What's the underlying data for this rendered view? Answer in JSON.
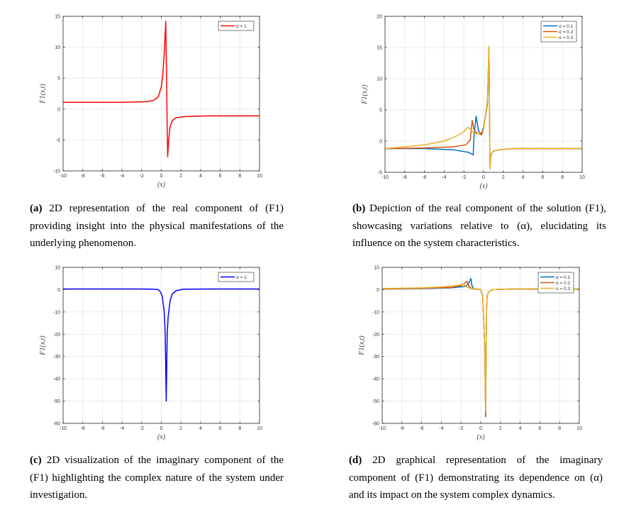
{
  "chart_data": [
    {
      "id": "a",
      "type": "line",
      "xlabel": "(x)",
      "ylabel": "F1(x,t)",
      "xlim": [
        -10,
        10
      ],
      "ylim": [
        -10,
        15
      ],
      "xticks": [
        -10,
        -8,
        -6,
        -4,
        -2,
        0,
        2,
        4,
        6,
        8,
        10
      ],
      "yticks": [
        -10,
        -5,
        0,
        5,
        10,
        15
      ],
      "grid": true,
      "legend": "top-right",
      "series": [
        {
          "name": "α = 1",
          "color": "#ff0000",
          "x": [
            -10,
            -4,
            -1.5,
            -0.8,
            -0.3,
            0.0,
            0.15,
            0.3,
            0.45,
            0.55,
            0.6,
            0.65,
            0.75,
            0.9,
            1.1,
            1.5,
            2.5,
            5,
            10
          ],
          "y": [
            1.1,
            1.1,
            1.2,
            1.4,
            2.0,
            3.6,
            5.5,
            9.0,
            14.2,
            3.0,
            -3.0,
            -7.7,
            -5.0,
            -2.8,
            -1.9,
            -1.4,
            -1.2,
            -1.1,
            -1.1
          ]
        }
      ],
      "caption_label": "(a)",
      "caption_text": "2D representation of the real component of (F1) providing insight into the physical manifestations of the underlying phenomenon."
    },
    {
      "id": "b",
      "type": "line",
      "xlabel": "(x)",
      "ylabel": "F1(x,t)",
      "xlim": [
        -10,
        10
      ],
      "ylim": [
        -5,
        20
      ],
      "xticks": [
        -10,
        -8,
        -6,
        -4,
        -2,
        0,
        2,
        4,
        6,
        8,
        10
      ],
      "yticks": [
        -5,
        0,
        5,
        10,
        15,
        20
      ],
      "grid": true,
      "legend": "top-right",
      "series": [
        {
          "name": "α = 0.1",
          "color": "#0072bd",
          "x": [
            -10,
            -6,
            -3,
            -1.5,
            -1.05,
            -0.95,
            -0.75,
            -0.6,
            -0.5,
            -0.25,
            0,
            0.4,
            0.5,
            0.55,
            0.6,
            0.65,
            0.7,
            0.8,
            1,
            1.5,
            3,
            10
          ],
          "y": [
            -1.2,
            -1.2,
            -1.4,
            -1.8,
            -2.2,
            1.2,
            4.0,
            2.5,
            1.6,
            1.2,
            2.2,
            6.0,
            12.5,
            15.0,
            5.0,
            -4.0,
            -3.0,
            -2.0,
            -1.6,
            -1.4,
            -1.2,
            -1.2
          ]
        },
        {
          "name": "α = 0.2",
          "color": "#d95319",
          "x": [
            -10,
            -6,
            -3,
            -1.8,
            -1.35,
            -1.15,
            -1.0,
            -0.8,
            -0.5,
            -0.2,
            0,
            0.4,
            0.5,
            0.55,
            0.6,
            0.65,
            0.7,
            0.8,
            1,
            1.5,
            3,
            10
          ],
          "y": [
            -1.2,
            -1.1,
            -0.9,
            -0.6,
            0.2,
            3.3,
            2.0,
            1.4,
            1.2,
            1.0,
            2.0,
            6.5,
            12.8,
            15.0,
            5.0,
            -4.0,
            -3.0,
            -2.0,
            -1.6,
            -1.4,
            -1.2,
            -1.2
          ]
        },
        {
          "name": "α = 0.3",
          "color": "#edb120",
          "x": [
            -10,
            -6,
            -4,
            -3,
            -2,
            -1.6,
            -1.4,
            -1.2,
            -0.8,
            -0.4,
            0,
            0.4,
            0.5,
            0.55,
            0.6,
            0.65,
            0.7,
            0.8,
            1,
            1.5,
            3,
            10
          ],
          "y": [
            -1.2,
            -0.6,
            0.0,
            0.6,
            1.5,
            2.2,
            2.0,
            1.6,
            1.2,
            1.2,
            1.8,
            6.5,
            12.8,
            15.2,
            5.0,
            -4.5,
            -3.0,
            -2.0,
            -1.6,
            -1.4,
            -1.2,
            -1.2
          ]
        }
      ],
      "caption_label": "(b)",
      "caption_text": "Depiction of the real component of the solution (F1), showcasing variations relative to (α), elucidating its influence on the system characteristics."
    },
    {
      "id": "c",
      "type": "line",
      "xlabel": "(x)",
      "ylabel": "F1(x,t)",
      "xlim": [
        -10,
        10
      ],
      "ylim": [
        -60,
        10
      ],
      "xticks": [
        -10,
        -8,
        -6,
        -4,
        -2,
        0,
        2,
        4,
        6,
        8,
        10
      ],
      "yticks": [
        -60,
        -50,
        -40,
        -30,
        -20,
        -10,
        0,
        10
      ],
      "grid": true,
      "legend": "top-right",
      "series": [
        {
          "name": "α = 1",
          "color": "#0000ff",
          "x": [
            -10,
            -2,
            -0.8,
            -0.3,
            -0.1,
            0.1,
            0.3,
            0.4,
            0.5,
            0.6,
            0.7,
            0.9,
            1.1,
            1.5,
            2.2,
            5,
            10
          ],
          "y": [
            0.3,
            0.3,
            0.2,
            0.0,
            -1.0,
            -3.0,
            -10.0,
            -20.0,
            -50.0,
            -20.0,
            -12.0,
            -5.0,
            -2.0,
            -0.5,
            0.2,
            0.3,
            0.3
          ]
        }
      ],
      "caption_label": "(c)",
      "caption_text": "2D visualization of the imaginary component of the (F1) highlighting the complex nature of the system under investigation."
    },
    {
      "id": "d",
      "type": "line",
      "xlabel": "(x)",
      "ylabel": "F1(x,t)",
      "xlim": [
        -10,
        10
      ],
      "ylim": [
        -60,
        10
      ],
      "xticks": [
        -10,
        -8,
        -6,
        -4,
        -2,
        0,
        2,
        4,
        6,
        8,
        10
      ],
      "yticks": [
        -60,
        -50,
        -40,
        -30,
        -20,
        -10,
        0,
        10
      ],
      "grid": true,
      "legend": "top-right",
      "series": [
        {
          "name": "α = 0.1",
          "color": "#0072bd",
          "x": [
            -10,
            -6,
            -3,
            -1.5,
            -1.2,
            -1.0,
            -0.9,
            -0.7,
            -0.4,
            0,
            0.2,
            0.4,
            0.5,
            0.55,
            0.6,
            0.65,
            0.8,
            1.2,
            3,
            10
          ],
          "y": [
            0.3,
            0.5,
            0.8,
            1.5,
            3.0,
            5.0,
            2.0,
            0.3,
            0.2,
            0.1,
            -3.0,
            -25.0,
            -57.0,
            -25.0,
            -8.0,
            -3.0,
            -1.0,
            0.0,
            0.3,
            0.3
          ]
        },
        {
          "name": "α = 0.2",
          "color": "#d95319",
          "x": [
            -10,
            -6,
            -3,
            -2,
            -1.6,
            -1.4,
            -1.2,
            -0.9,
            -0.4,
            0,
            0.2,
            0.4,
            0.5,
            0.55,
            0.6,
            0.65,
            0.8,
            1.2,
            3,
            10
          ],
          "y": [
            0.3,
            0.6,
            1.0,
            1.8,
            3.0,
            3.8,
            1.5,
            0.5,
            0.3,
            0.1,
            -3.0,
            -25.0,
            -57.0,
            -25.0,
            -8.0,
            -3.0,
            -1.0,
            0.0,
            0.3,
            0.3
          ]
        },
        {
          "name": "α = 0.3",
          "color": "#edb120",
          "x": [
            -10,
            -6,
            -4,
            -2.5,
            -2,
            -1.7,
            -1.4,
            -1.0,
            -0.5,
            0,
            0.2,
            0.4,
            0.5,
            0.55,
            0.6,
            0.65,
            0.8,
            1.2,
            3,
            10
          ],
          "y": [
            0.5,
            0.8,
            1.2,
            1.8,
            2.2,
            2.5,
            1.2,
            0.5,
            0.3,
            0.1,
            -3.0,
            -25.0,
            -55.0,
            -25.0,
            -8.0,
            -3.0,
            -1.0,
            0.0,
            0.3,
            0.3
          ]
        }
      ],
      "caption_label": "(d)",
      "caption_text": "2D graphical representation of the imaginary component of (F1) demonstrating its dependence on (α) and its impact on the system complex dynamics."
    }
  ]
}
